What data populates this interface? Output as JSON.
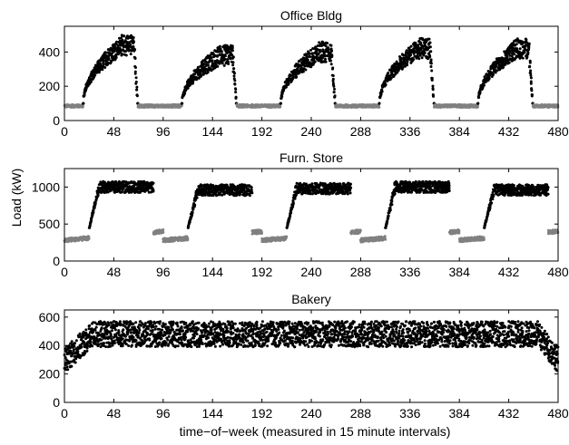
{
  "figure": {
    "ylabel": "Load (kW)",
    "xlabel": "time−of−week (measured in 15 minute intervals)"
  },
  "colors": {
    "occupied": "#000000",
    "unoccupied": "#808080",
    "axis": "#000000"
  },
  "chart_data": [
    {
      "type": "scatter",
      "title": "Office Bldg",
      "xlim": [
        0,
        480
      ],
      "ylim": [
        0,
        550
      ],
      "xticks": [
        0,
        48,
        96,
        144,
        192,
        240,
        288,
        336,
        384,
        432,
        480
      ],
      "yticks": [
        0,
        200,
        400
      ],
      "grid": false,
      "profile": {
        "unoccupied_base": 85,
        "days": [
          {
            "start": 18,
            "end": 71,
            "peak": 440
          },
          {
            "start": 114,
            "end": 167,
            "peak": 380
          },
          {
            "start": 210,
            "end": 263,
            "peak": 400
          },
          {
            "start": 306,
            "end": 359,
            "peak": 420
          },
          {
            "start": 402,
            "end": 455,
            "peak": 420
          }
        ]
      }
    },
    {
      "type": "scatter",
      "title": "Furn. Store",
      "xlim": [
        0,
        480
      ],
      "ylim": [
        0,
        1250
      ],
      "xticks": [
        0,
        48,
        96,
        144,
        192,
        240,
        288,
        336,
        384,
        432,
        480
      ],
      "yticks": [
        0,
        500,
        1000
      ],
      "grid": false,
      "profile": {
        "unoccupied_start": 280,
        "unoccupied_end": 400,
        "days": [
          {
            "start": 24,
            "end": 86,
            "peak": 1000
          },
          {
            "start": 120,
            "end": 182,
            "peak": 960
          },
          {
            "start": 216,
            "end": 278,
            "peak": 980
          },
          {
            "start": 312,
            "end": 374,
            "peak": 1000
          },
          {
            "start": 408,
            "end": 470,
            "peak": 960
          }
        ]
      }
    },
    {
      "type": "scatter",
      "title": "Bakery",
      "xlim": [
        0,
        480
      ],
      "ylim": [
        0,
        650
      ],
      "xticks": [
        0,
        48,
        96,
        144,
        192,
        240,
        288,
        336,
        384,
        432,
        480
      ],
      "yticks": [
        0,
        200,
        400,
        600
      ],
      "grid": false,
      "profile": {
        "start_level": 300,
        "ramp_end": 28,
        "level": 480,
        "spread": 90,
        "end_level": 300
      }
    }
  ]
}
